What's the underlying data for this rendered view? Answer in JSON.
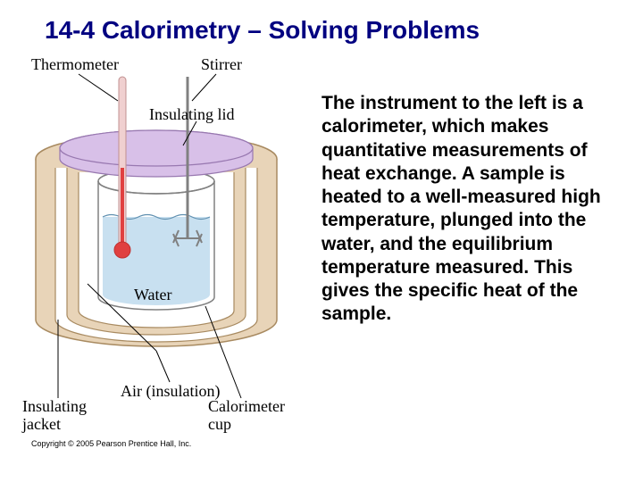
{
  "title": "14-4 Calorimetry – Solving Problems",
  "body": "The instrument to the left is a calorimeter, which makes quantitative measurements of heat exchange. A sample is heated to a well-measured high temperature, plunged into the water, and the equilibrium temperature measured. This gives the specific heat of the sample.",
  "labels": {
    "thermometer": "Thermometer",
    "stirrer": "Stirrer",
    "lid": "Insulating lid",
    "water": "Water",
    "air": "Air (insulation)",
    "jacket": "Insulating jacket",
    "cup": "Calorimeter cup"
  },
  "copyright": "Copyright © 2005 Pearson Prentice Hall, Inc.",
  "colors": {
    "title": "#000080",
    "jacket_fill": "#e8d4b8",
    "jacket_stroke": "#a88a60",
    "lid_fill": "#d8c0e8",
    "lid_stroke": "#9878b0",
    "cup_stroke": "#808080",
    "water_fill": "#c8e0f0",
    "water_line": "#6090b0",
    "thermo_red": "#e04040",
    "thermo_tube": "#f0d0d0",
    "stirrer_gray": "#808080"
  }
}
